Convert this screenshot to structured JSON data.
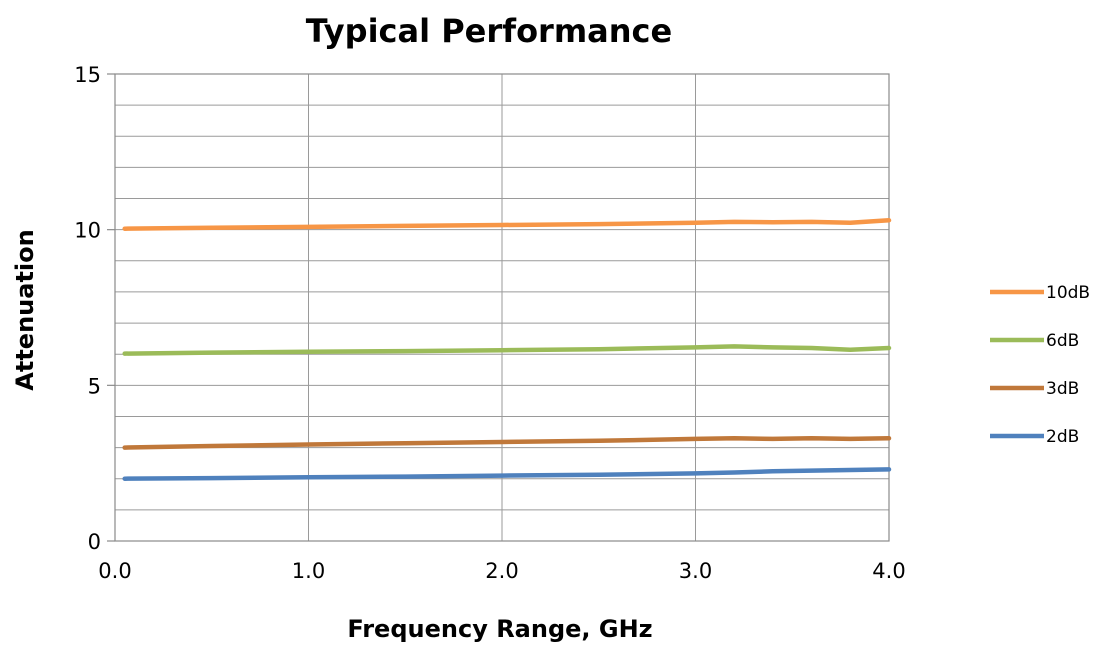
{
  "chart_data": {
    "type": "line",
    "title": "Typical Performance",
    "xlabel": "Frequency Range, GHz",
    "ylabel": "Attenuation",
    "xlim": [
      0.0,
      4.0
    ],
    "ylim": [
      0,
      15
    ],
    "x_ticks": [
      "0.0",
      "1.0",
      "2.0",
      "3.0",
      "4.0"
    ],
    "y_ticks": [
      "0",
      "5",
      "10",
      "15"
    ],
    "y_minor_step": 1,
    "x_major_step": 1.0,
    "grid": true,
    "legend_position": "right",
    "x": [
      0.05,
      0.5,
      1.0,
      1.5,
      2.0,
      2.5,
      3.0,
      3.2,
      3.4,
      3.6,
      3.8,
      4.0
    ],
    "series": [
      {
        "name": "10dB",
        "color": "#F79646",
        "values": [
          10.03,
          10.06,
          10.09,
          10.12,
          10.15,
          10.18,
          10.22,
          10.25,
          10.24,
          10.25,
          10.22,
          10.3
        ]
      },
      {
        "name": "6dB",
        "color": "#9BBB59",
        "values": [
          6.02,
          6.05,
          6.08,
          6.1,
          6.13,
          6.16,
          6.22,
          6.25,
          6.22,
          6.2,
          6.14,
          6.2
        ]
      },
      {
        "name": "3dB",
        "color": "#C0783A",
        "values": [
          3.0,
          3.05,
          3.1,
          3.14,
          3.18,
          3.22,
          3.28,
          3.3,
          3.28,
          3.3,
          3.28,
          3.3
        ]
      },
      {
        "name": "2dB",
        "color": "#4F81BD",
        "values": [
          2.0,
          2.02,
          2.05,
          2.07,
          2.1,
          2.13,
          2.17,
          2.2,
          2.24,
          2.26,
          2.28,
          2.3
        ]
      }
    ]
  }
}
